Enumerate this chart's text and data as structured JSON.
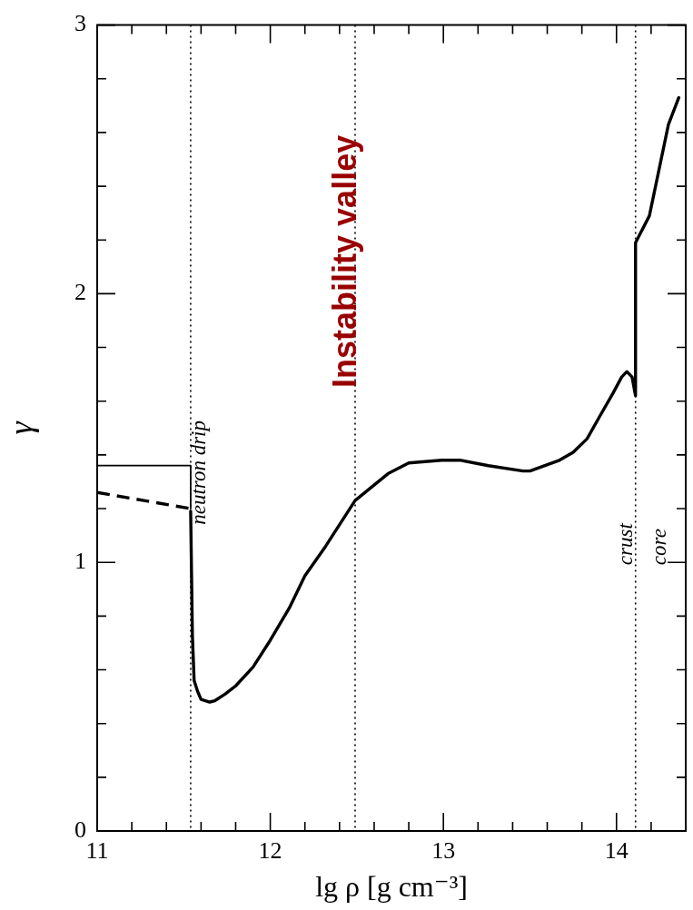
{
  "chart_data": {
    "type": "line",
    "xlabel": "lg ρ [g cm⁻³]",
    "ylabel": "γ",
    "xlim": [
      11,
      14.4
    ],
    "xticks": [
      11,
      {
        "value": 11.2,
        "label": null
      },
      {
        "value": 11.4,
        "label": null
      },
      {
        "value": 11.6,
        "label": null
      },
      {
        "value": 11.8,
        "label": null
      },
      12,
      {
        "value": 12.2,
        "label": null
      },
      {
        "value": 12.4,
        "label": null
      },
      {
        "value": 12.6,
        "label": null
      },
      {
        "value": 12.8,
        "label": null
      },
      13,
      {
        "value": 13.2,
        "label": null
      },
      {
        "value": 13.4,
        "label": null
      },
      {
        "value": 13.6,
        "label": null
      },
      {
        "value": 13.8,
        "label": null
      },
      14,
      {
        "value": 14.2,
        "label": null
      },
      {
        "value": 14.4,
        "label": null
      }
    ],
    "ylim": [
      0,
      3
    ],
    "yticks": [
      0,
      {
        "value": 0.2,
        "label": null
      },
      {
        "value": 0.4,
        "label": null
      },
      {
        "value": 0.6,
        "label": null
      },
      {
        "value": 0.8,
        "label": null
      },
      1,
      {
        "value": 1.2,
        "label": null
      },
      {
        "value": 1.4,
        "label": null
      },
      {
        "value": 1.6,
        "label": null
      },
      {
        "value": 1.8,
        "label": null
      },
      2,
      {
        "value": 2.2,
        "label": null
      },
      {
        "value": 2.4,
        "label": null
      },
      {
        "value": 2.6,
        "label": null
      },
      {
        "value": 2.8,
        "label": null
      },
      3
    ],
    "grid": false,
    "legend": false,
    "marker": "none",
    "series": [
      {
        "color": "#000000",
        "line_style": "solid",
        "x": [
          11,
          11.54,
          11.54
        ],
        "values": [
          1.36,
          1.36,
          1.2
        ]
      },
      {
        "color": "#000000",
        "line_style": "dashed",
        "x": [
          11,
          11.27,
          11.54
        ],
        "values": [
          1.26,
          1.23,
          1.2
        ]
      },
      {
        "color": "#000000",
        "line_style": "solid",
        "x": [
          11.54,
          11.55,
          11.56,
          11.58,
          11.6,
          11.65,
          11.68,
          11.74,
          11.8,
          11.9,
          12.0,
          12.11,
          12.2,
          12.32,
          12.49,
          12.68,
          12.8,
          12.99,
          13.1,
          13.26,
          13.46,
          13.5,
          13.67,
          13.75,
          13.83,
          13.9,
          13.98,
          14.03,
          14.06,
          14.09,
          14.11,
          14.11,
          14.19,
          14.3,
          14.36
        ],
        "values": [
          1.19,
          0.73,
          0.56,
          0.52,
          0.49,
          0.48,
          0.485,
          0.51,
          0.54,
          0.61,
          0.71,
          0.83,
          0.95,
          1.06,
          1.23,
          1.33,
          1.37,
          1.38,
          1.38,
          1.36,
          1.34,
          1.34,
          1.38,
          1.41,
          1.46,
          1.54,
          1.63,
          1.69,
          1.71,
          1.69,
          1.62,
          2.19,
          2.29,
          2.63,
          2.73
        ]
      }
    ],
    "ref_lines": [
      {
        "axis": "x",
        "value": 11.54,
        "line_style": "dotted",
        "color": "#000000"
      },
      {
        "axis": "x",
        "value": 12.49,
        "line_style": "dotted",
        "color": "#000000"
      },
      {
        "axis": "x",
        "value": 14.11,
        "line_style": "dotted",
        "color": "#000000"
      }
    ],
    "annotations": [
      "neutron drip",
      "Instability valley",
      "crust",
      "core"
    ]
  }
}
